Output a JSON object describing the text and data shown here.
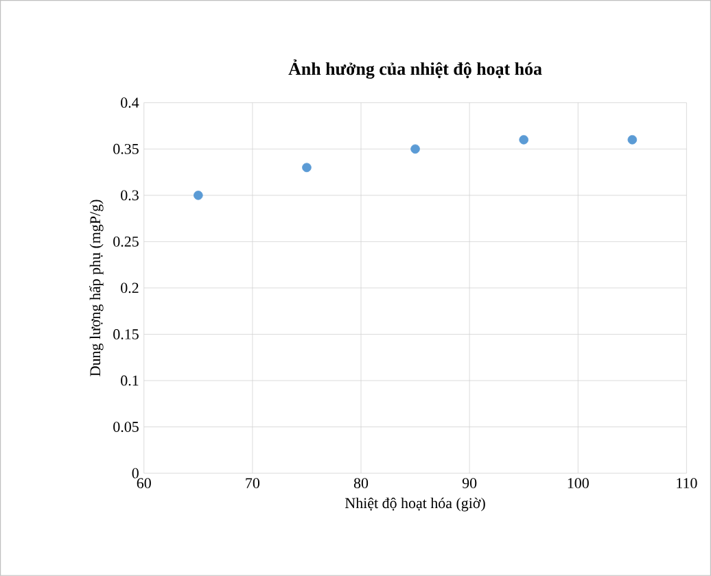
{
  "chart_data": {
    "type": "scatter",
    "title": "Ảnh hưởng của nhiệt độ hoạt hóa",
    "xlabel": "Nhiệt độ hoạt hóa (giờ)",
    "ylabel": "Dung lượng hấp phụ (mgP/g)",
    "x": [
      65,
      75,
      85,
      95,
      105
    ],
    "series": [
      {
        "color": "#5b9bd5",
        "values": [
          0.3,
          0.33,
          0.35,
          0.36,
          0.36
        ]
      }
    ],
    "xlim": [
      60,
      110
    ],
    "xticks": [
      60,
      70,
      80,
      90,
      100,
      110
    ],
    "ylim": [
      0,
      0.4
    ],
    "yticks": [
      0,
      0.05,
      0.1,
      0.15,
      0.2,
      0.25,
      0.3,
      0.35,
      0.4
    ],
    "grid": true,
    "marker": "circle"
  }
}
